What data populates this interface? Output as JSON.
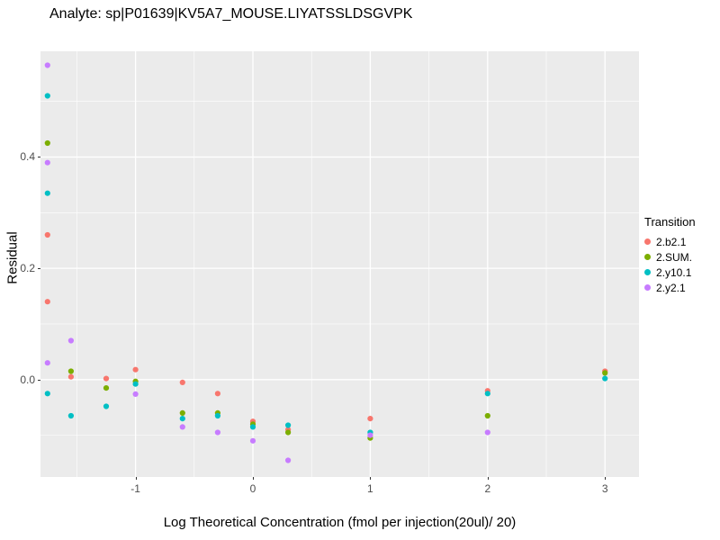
{
  "chart_data": {
    "type": "scatter",
    "title": "Analyte: sp|P01639|KV5A7_MOUSE.LIYATSSLDSGVPK",
    "xlabel": "Log Theoretical Concentration (fmol per injection(20ul)/ 20)",
    "ylabel": "Residual",
    "x_range": [
      -1.81,
      3.29
    ],
    "y_range": [
      -0.175,
      0.59
    ],
    "x_ticks": [
      -1,
      0,
      1,
      2,
      3
    ],
    "x_tick_labels": [
      "-1",
      "0",
      "1",
      "2",
      "3"
    ],
    "y_ticks": [
      0.0,
      0.2,
      0.4
    ],
    "y_tick_labels": [
      "0.0",
      "0.2",
      "0.4"
    ],
    "x_minor_ticks": [
      -1.5,
      -0.5,
      0.5,
      1.5,
      2.5
    ],
    "y_minor_ticks": [
      -0.1,
      0.1,
      0.3,
      0.5
    ],
    "grid": true,
    "panel_bg": "#EBEBEB",
    "grid_color": "#FFFFFF",
    "legend": {
      "title": "Transition",
      "position": "right"
    },
    "series": [
      {
        "name": "2.b2.1",
        "color": "#F8766D",
        "points": [
          [
            -1.75,
            0.26
          ],
          [
            -1.75,
            0.14
          ],
          [
            -1.55,
            0.005
          ],
          [
            -1.25,
            0.002
          ],
          [
            -1.0,
            0.018
          ],
          [
            -0.6,
            -0.005
          ],
          [
            -0.3,
            -0.025
          ],
          [
            0,
            -0.075
          ],
          [
            0.3,
            -0.09
          ],
          [
            1,
            -0.07
          ],
          [
            2,
            -0.02
          ],
          [
            3,
            0.015
          ]
        ]
      },
      {
        "name": "2.SUM.",
        "color": "#7CAE00",
        "points": [
          [
            -1.75,
            0.425
          ],
          [
            -1.55,
            0.015
          ],
          [
            -1.25,
            -0.015
          ],
          [
            -1.0,
            -0.003
          ],
          [
            -0.6,
            -0.06
          ],
          [
            -0.3,
            -0.06
          ],
          [
            0,
            -0.08
          ],
          [
            0.3,
            -0.095
          ],
          [
            1,
            -0.105
          ],
          [
            2,
            -0.065
          ],
          [
            3,
            0.012
          ]
        ]
      },
      {
        "name": "2.y10.1",
        "color": "#00BFC4",
        "points": [
          [
            -1.75,
            0.51
          ],
          [
            -1.75,
            0.335
          ],
          [
            -1.75,
            -0.025
          ],
          [
            -1.55,
            -0.065
          ],
          [
            -1.25,
            -0.048
          ],
          [
            -1.0,
            -0.008
          ],
          [
            -0.6,
            -0.07
          ],
          [
            -0.3,
            -0.065
          ],
          [
            0,
            -0.085
          ],
          [
            0.3,
            -0.082
          ],
          [
            1,
            -0.095
          ],
          [
            2,
            -0.025
          ],
          [
            3,
            0.002
          ]
        ]
      },
      {
        "name": "2.y2.1",
        "color": "#C77CFF",
        "points": [
          [
            -1.75,
            0.565
          ],
          [
            -1.75,
            0.39
          ],
          [
            -1.75,
            0.03
          ],
          [
            -1.55,
            0.07
          ],
          [
            -1.0,
            -0.026
          ],
          [
            -0.6,
            -0.085
          ],
          [
            -0.3,
            -0.095
          ],
          [
            0,
            -0.11
          ],
          [
            0.3,
            -0.145
          ],
          [
            1,
            -0.1
          ],
          [
            2,
            -0.095
          ]
        ]
      }
    ]
  }
}
